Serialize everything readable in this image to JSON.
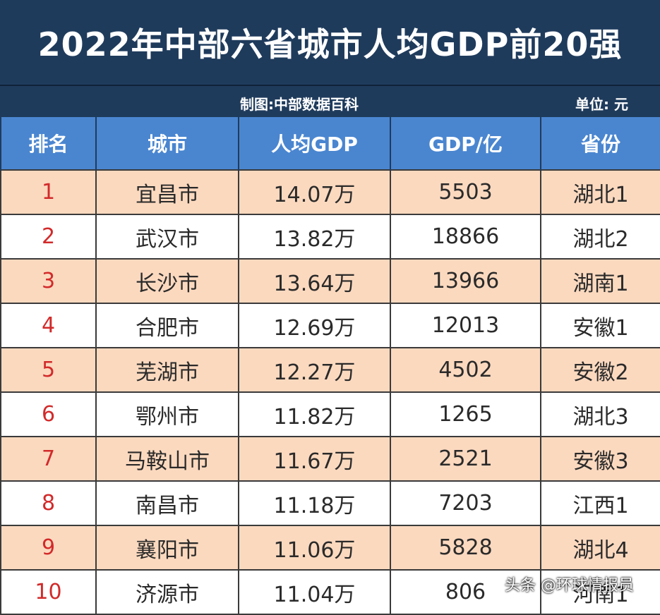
{
  "title": "2022年中部六省城市人均GDP前20强",
  "credit": "制图:中部数据百科",
  "unit": "单位: 元",
  "headers": [
    "排名",
    "城市",
    "人均GDP",
    "GDP/亿",
    "省份"
  ],
  "rows": [
    [
      "1",
      "宜昌市",
      "14.07万",
      "5503",
      "湖北1"
    ],
    [
      "2",
      "武汉市",
      "13.82万",
      "18866",
      "湖北2"
    ],
    [
      "3",
      "长沙市",
      "13.64万",
      "13966",
      "湖南1"
    ],
    [
      "4",
      "合肥市",
      "12.69万",
      "12013",
      "安徽1"
    ],
    [
      "5",
      "芜湖市",
      "12.27万",
      "4502",
      "安徽2"
    ],
    [
      "6",
      "鄂州市",
      "11.82万",
      "1265",
      "湖北3"
    ],
    [
      "7",
      "马鞍山市",
      "11.67万",
      "2521",
      "安徽3"
    ],
    [
      "8",
      "南昌市",
      "11.18万",
      "7203",
      "江西1"
    ],
    [
      "9",
      "襄阳市",
      "11.06万",
      "5828",
      "湖北4"
    ],
    [
      "10",
      "济源市",
      "11.04万",
      "806",
      "河南1"
    ]
  ],
  "watermark": "头条 @环球情报员"
}
